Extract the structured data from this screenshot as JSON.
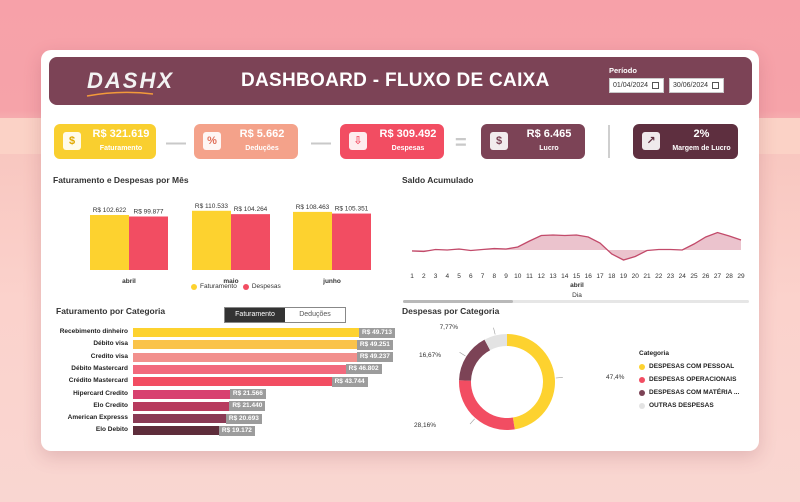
{
  "header": {
    "logo": "DASHX",
    "title": "DASHBOARD - FLUXO DE CAIXA",
    "period_label": "Período",
    "date_start": "01/04/2024",
    "date_end": "30/06/2024"
  },
  "kpis": [
    {
      "value": "R$ 321.619",
      "label": "Faturamento",
      "icon": "dollar-icon",
      "color": "#f9cf2f"
    },
    {
      "value": "R$ 5.662",
      "label": "Deduções",
      "icon": "percent-icon",
      "color": "#f4a28a"
    },
    {
      "value": "R$ 309.492",
      "label": "Despesas",
      "icon": "expense-icon",
      "color": "#f24d62"
    },
    {
      "value": "R$ 6.465",
      "label": "Lucro",
      "icon": "moneybag-icon",
      "color": "#7c4356"
    },
    {
      "value": "2%",
      "label": "Margem de Lucro",
      "icon": "trend-up-icon",
      "color": "#5e2f3f"
    }
  ],
  "operators": [
    "—",
    "—",
    "="
  ],
  "colors": {
    "faturamento": "#fdd22f",
    "despesas": "#f24d62",
    "header": "#7c4356",
    "saldo_line": "#c24a6a",
    "saldo_fill": "#e6b4c0"
  },
  "bar_chart": {
    "title": "Faturamento e Despesas por Mês",
    "legend": [
      "Faturamento",
      "Despesas"
    ]
  },
  "chart_data": [
    {
      "type": "bar",
      "title": "Faturamento e Despesas por Mês",
      "categories": [
        "abril",
        "maio",
        "junho"
      ],
      "series": [
        {
          "name": "Faturamento",
          "values": [
            102622,
            110533,
            108463
          ],
          "labels": [
            "R$ 102.622",
            "R$ 110.533",
            "R$ 108.463"
          ]
        },
        {
          "name": "Despesas",
          "values": [
            99877,
            104264,
            105351
          ],
          "labels": [
            "R$ 99.877",
            "R$ 104.264",
            "R$ 105.351"
          ]
        }
      ]
    },
    {
      "type": "area",
      "title": "Saldo Acumulado",
      "xlabel": "Dia",
      "group_label": "abril",
      "x": [
        1,
        2,
        3,
        4,
        5,
        6,
        7,
        8,
        9,
        10,
        11,
        12,
        13,
        14,
        15,
        16,
        17,
        18,
        19,
        20,
        21,
        22,
        23,
        24,
        25,
        26,
        27,
        28,
        29
      ],
      "values": [
        0.2,
        0.1,
        0.5,
        0.4,
        0.6,
        0.3,
        0.5,
        0.7,
        0.6,
        1.0,
        2.2,
        3.3,
        3.4,
        3.3,
        3.4,
        3.0,
        1.8,
        -0.4,
        -1.6,
        -0.9,
        0.3,
        0.5,
        0.5,
        0.4,
        1.6,
        3.0,
        3.9,
        3.2,
        2.4
      ]
    },
    {
      "type": "bar",
      "orientation": "horizontal",
      "title": "Faturamento por Categoria",
      "categories": [
        "Recebimento dinheiro",
        "Débito visa",
        "Credito visa",
        "Débito Mastercard",
        "Crédito Mastercard",
        "Hipercard Credito",
        "Elo Credito",
        "American Expresss",
        "Elo Debito"
      ],
      "values": [
        49713,
        49251,
        49237,
        46802,
        43744,
        21566,
        21440,
        20693,
        19172
      ],
      "labels": [
        "R$ 49.713",
        "R$ 49.251",
        "R$ 49.237",
        "R$ 46.802",
        "R$ 43.744",
        "R$ 21.566",
        "R$ 21.440",
        "R$ 20.693",
        "R$ 19.172"
      ],
      "colors": [
        "#fdd22f",
        "#fac34a",
        "#f2908d",
        "#f2697d",
        "#f24d62",
        "#d84170",
        "#b73b5e",
        "#8a3a55",
        "#5e2d3b"
      ]
    },
    {
      "type": "pie",
      "title": "Despesas por Categoria",
      "legend_title": "Categoria",
      "categories": [
        "DESPESAS COM PESSOAL",
        "DESPESAS OPERACIONAIS",
        "DESPESAS COM MATÉRIA ...",
        "OUTRAS DESPESAS"
      ],
      "values": [
        47.4,
        28.16,
        16.67,
        7.77
      ],
      "labels": [
        "47,4%",
        "28,16%",
        "16,67%",
        "7,77%"
      ],
      "colors": [
        "#fdd22f",
        "#f24d62",
        "#7c4356",
        "#e3e3e3"
      ]
    }
  ],
  "toggle": {
    "active": "Faturamento",
    "inactive": "Deduções"
  }
}
